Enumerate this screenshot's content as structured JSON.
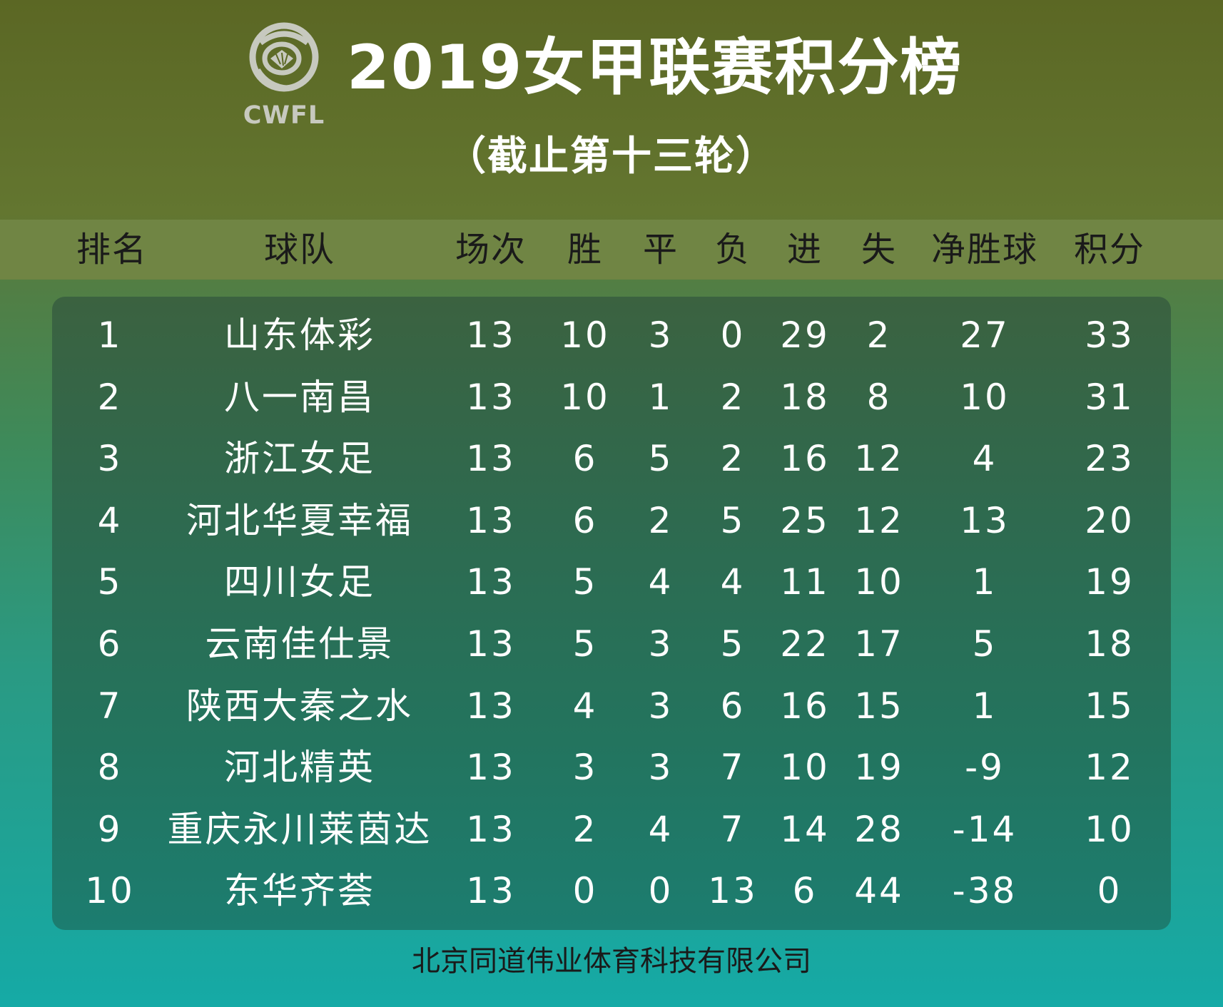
{
  "header": {
    "logo_text": "CWFL",
    "title": "2019女甲联赛积分榜",
    "subtitle": "（截止第十三轮）"
  },
  "columns": [
    "排名",
    "球队",
    "场次",
    "胜",
    "平",
    "负",
    "进",
    "失",
    "净胜球",
    "积分"
  ],
  "rows": [
    [
      "1",
      "山东体彩",
      "13",
      "10",
      "3",
      "0",
      "29",
      "2",
      "27",
      "33"
    ],
    [
      "2",
      "八一南昌",
      "13",
      "10",
      "1",
      "2",
      "18",
      "8",
      "10",
      "31"
    ],
    [
      "3",
      "浙江女足",
      "13",
      "6",
      "5",
      "2",
      "16",
      "12",
      "4",
      "23"
    ],
    [
      "4",
      "河北华夏幸福",
      "13",
      "6",
      "2",
      "5",
      "25",
      "12",
      "13",
      "20"
    ],
    [
      "5",
      "四川女足",
      "13",
      "5",
      "4",
      "4",
      "11",
      "10",
      "1",
      "19"
    ],
    [
      "6",
      "云南佳仕景",
      "13",
      "5",
      "3",
      "5",
      "22",
      "17",
      "5",
      "18"
    ],
    [
      "7",
      "陕西大秦之水",
      "13",
      "4",
      "3",
      "6",
      "16",
      "15",
      "1",
      "15"
    ],
    [
      "8",
      "河北精英",
      "13",
      "3",
      "3",
      "7",
      "10",
      "19",
      "-9",
      "12"
    ],
    [
      "9",
      "重庆永川莱茵达",
      "13",
      "2",
      "4",
      "7",
      "14",
      "28",
      "-14",
      "10"
    ],
    [
      "10",
      "东华齐荟",
      "13",
      "0",
      "0",
      "13",
      "6",
      "44",
      "-38",
      "0"
    ]
  ],
  "footer": "北京同道伟业体育科技有限公司"
}
